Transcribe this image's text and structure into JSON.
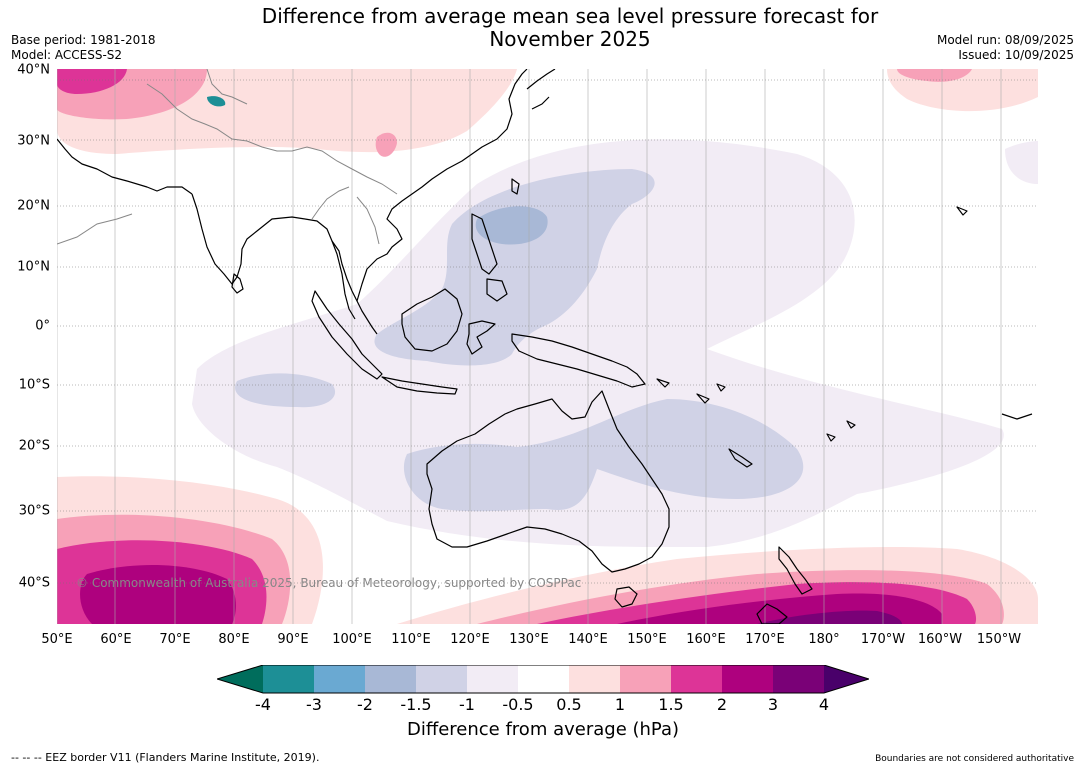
{
  "title": {
    "line1": "Difference from average mean sea level pressure forecast for",
    "line2": "November 2025"
  },
  "meta": {
    "base_period": "Base period: 1981-2018",
    "model": "Model: ACCESS-S2",
    "model_run": "Model run: 08/09/2025",
    "issued": "Issued: 10/09/2025"
  },
  "map": {
    "lat_labels": [
      "40°N",
      "30°N",
      "20°N",
      "10°N",
      "0°",
      "10°S",
      "20°S",
      "30°S",
      "40°S"
    ],
    "lon_labels": [
      "50°E",
      "60°E",
      "70°E",
      "80°E",
      "90°E",
      "100°E",
      "110°E",
      "120°E",
      "130°E",
      "140°E",
      "150°E",
      "160°E",
      "170°E",
      "180°",
      "170°W",
      "160°W",
      "150°W"
    ],
    "copyright": "© Commonwealth of Australia 2025, Bureau of Meteorology, supported by COSPPac"
  },
  "colorbar": {
    "ticks": [
      "-4",
      "-3",
      "-2",
      "-1.5",
      "-1",
      "-0.5",
      "0.5",
      "1",
      "1.5",
      "2",
      "3",
      "4"
    ],
    "colors": [
      "#006d5c",
      "#1d8f96",
      "#6aa9d2",
      "#a8b8d6",
      "#d0d2e6",
      "#f2ecf5",
      "#ffffff",
      "#fde0df",
      "#f7a1b8",
      "#dd3497",
      "#ae017e",
      "#7a0177",
      "#49006a"
    ],
    "label": "Difference from average (hPa)"
  },
  "footer": {
    "eez": "--  --  -- EEZ border V11 (Flanders Marine Institute, 2019).",
    "disclaimer": "Boundaries are not considered authoritative"
  }
}
